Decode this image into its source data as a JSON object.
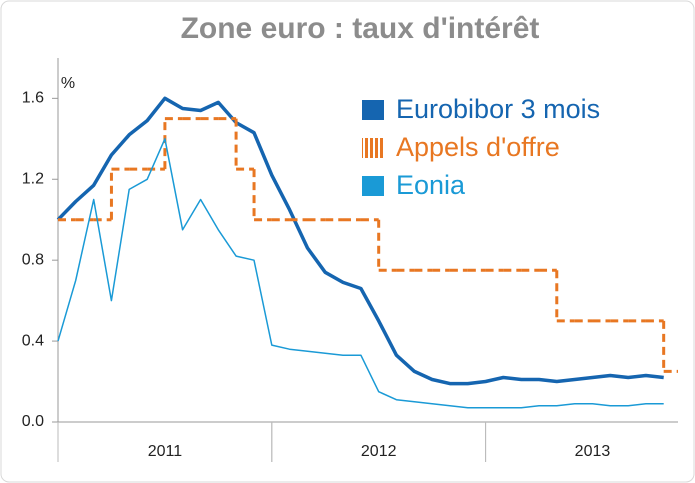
{
  "chart_data": {
    "type": "line",
    "title": "Zone euro : taux d'intérêt",
    "ylabel": "%",
    "x": [
      2011,
      2011.083,
      2011.167,
      2011.25,
      2011.333,
      2011.417,
      2011.5,
      2011.583,
      2011.667,
      2011.75,
      2011.833,
      2011.917,
      2012,
      2012.083,
      2012.167,
      2012.25,
      2012.333,
      2012.417,
      2012.5,
      2012.583,
      2012.667,
      2012.75,
      2012.833,
      2012.917,
      2013,
      2013.083,
      2013.167,
      2013.25,
      2013.333,
      2013.417,
      2013.5,
      2013.583,
      2013.667,
      2013.75,
      2013.833
    ],
    "xlim": [
      2011,
      2013.9
    ],
    "xticks": [
      {
        "value": 2011.5,
        "label": "2011"
      },
      {
        "value": 2012.5,
        "label": "2012"
      },
      {
        "value": 2013.5,
        "label": "2013"
      }
    ],
    "ylim": [
      0,
      1.75
    ],
    "yticks": [
      {
        "value": 0,
        "label": "0.0"
      },
      0.4,
      0.8,
      1.2,
      1.6
    ],
    "legend": "top-right",
    "series": [
      {
        "name": "Eurobibor 3 mois",
        "color": "#1565b0",
        "style": "solid",
        "values": [
          1.0,
          1.09,
          1.17,
          1.32,
          1.42,
          1.49,
          1.6,
          1.55,
          1.54,
          1.58,
          1.48,
          1.43,
          1.22,
          1.05,
          0.86,
          0.74,
          0.69,
          0.66,
          0.5,
          0.33,
          0.25,
          0.21,
          0.19,
          0.19,
          0.2,
          0.22,
          0.21,
          0.21,
          0.2,
          0.21,
          0.22,
          0.23,
          0.22,
          0.23,
          0.22
        ]
      },
      {
        "name": "Appels d'offre",
        "color": "#e87722",
        "style": "step",
        "values": [
          1.0,
          1.0,
          1.0,
          1.25,
          1.25,
          1.25,
          1.5,
          1.5,
          1.5,
          1.5,
          1.25,
          1.0,
          1.0,
          1.0,
          1.0,
          1.0,
          1.0,
          1.0,
          0.75,
          0.75,
          0.75,
          0.75,
          0.75,
          0.75,
          0.75,
          0.75,
          0.75,
          0.75,
          0.5,
          0.5,
          0.5,
          0.5,
          0.5,
          0.5,
          0.25
        ]
      },
      {
        "name": "Eonia",
        "color": "#1a9ad6",
        "style": "thin",
        "values": [
          0.4,
          0.7,
          1.1,
          0.6,
          1.15,
          1.2,
          1.4,
          0.95,
          1.1,
          0.95,
          0.82,
          0.8,
          0.38,
          0.36,
          0.35,
          0.34,
          0.33,
          0.33,
          0.15,
          0.11,
          0.1,
          0.09,
          0.08,
          0.07,
          0.07,
          0.07,
          0.07,
          0.08,
          0.08,
          0.09,
          0.09,
          0.08,
          0.08,
          0.09,
          0.09
        ]
      }
    ]
  }
}
